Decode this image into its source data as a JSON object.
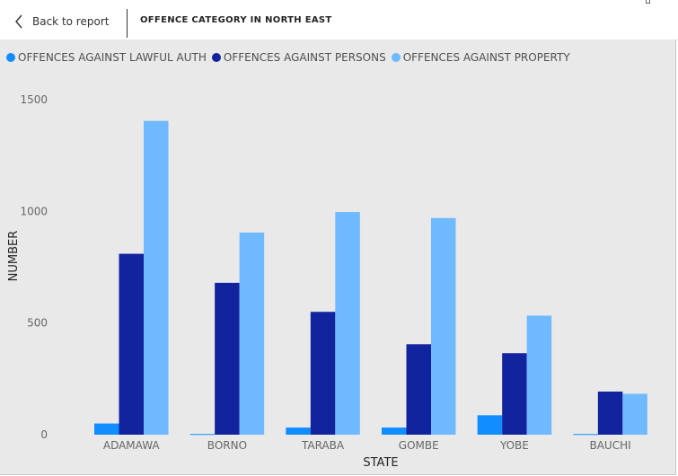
{
  "header": {
    "back_label": "Back to report",
    "title": "OFFENCE CATEGORY IN NORTH EAST"
  },
  "colors": {
    "lawful_auth": "#118dff",
    "persons": "#12239e",
    "property": "#6fb9ff"
  },
  "chart_data": {
    "type": "bar",
    "title": "OFFENCE CATEGORY IN NORTH EAST",
    "xlabel": "STATE",
    "ylabel": "NUMBER",
    "categories": [
      "ADAMAWA",
      "BORNO",
      "TARABA",
      "GOMBE",
      "YOBE",
      "BAUCHI"
    ],
    "y_ticks": [
      0,
      500,
      1000,
      1500
    ],
    "y_tick_labels": [
      "0",
      "500",
      "1000",
      "1500"
    ],
    "ylim": [
      0,
      1500
    ],
    "grid": false,
    "legend_position": "top-left",
    "series": [
      {
        "name": "OFFENCES AGAINST LAWFUL AUTH",
        "color": "#118dff",
        "values": [
          50,
          3,
          32,
          32,
          87,
          3
        ]
      },
      {
        "name": "OFFENCES AGAINST PERSONS",
        "color": "#12239e",
        "values": [
          810,
          680,
          550,
          405,
          365,
          193
        ]
      },
      {
        "name": "OFFENCES AGAINST PROPERTY",
        "color": "#6fb9ff",
        "values": [
          1405,
          905,
          997,
          970,
          533,
          183
        ]
      }
    ]
  }
}
